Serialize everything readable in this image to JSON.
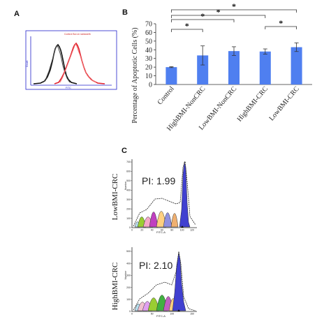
{
  "panels": {
    "a": {
      "letter": "A",
      "title": "Control Ba Lin ssbsweth",
      "ylabel": "Count",
      "xlabel": "FITC",
      "colors": {
        "control": "#111111",
        "treated": "#e0202e",
        "frame": "#2222cc"
      }
    },
    "b": {
      "letter": "B",
      "chart_data": {
        "type": "bar",
        "categories": [
          "Control",
          "HighBMI-NonCRC",
          "LowBMI-NonCRC",
          "HighBMI-CRC",
          "LowBMI-CRC"
        ],
        "values": [
          20,
          33.5,
          38.5,
          38,
          43
        ],
        "errors": [
          0.5,
          11,
          5,
          3,
          5
        ],
        "ylabel": "Percentage of Apoptotic Cells (%)",
        "ylim": [
          0,
          70
        ],
        "yticks": [
          0,
          10,
          20,
          30,
          40,
          50,
          60,
          70
        ],
        "bar_color": "#4f7ff0",
        "grid": false,
        "significance": [
          {
            "from": 0,
            "to": 1,
            "label": "*"
          },
          {
            "from": 0,
            "to": 2,
            "label": "*"
          },
          {
            "from": 0,
            "to": 3,
            "label": "*"
          },
          {
            "from": 0,
            "to": 4,
            "label": "*"
          },
          {
            "from": 3,
            "to": 4,
            "label": "*"
          }
        ]
      }
    },
    "c": {
      "letter": "C",
      "plots": [
        {
          "row_label": "LowBMI-CRC",
          "pi_text": "PI: 1.99",
          "xlabel": "FITC-A",
          "ylabel": "Number",
          "yticks": [
            "0",
            "100",
            "200",
            "300",
            "400",
            "500",
            "600",
            "700"
          ],
          "xticks": [
            "0",
            "20",
            "40",
            "60",
            "80",
            "100",
            "120"
          ],
          "peak_colors": [
            "#b8e0f0",
            "#9acd32",
            "#f5a8c8",
            "#c040c0",
            "#ffd080",
            "#9090e0",
            "#f0b070",
            "#4040d0"
          ]
        },
        {
          "row_label": "HighBMI-CRC",
          "pi_text": "PI: 2.10",
          "xlabel": "FITC-A",
          "ylabel": "Number",
          "yticks": [
            "0",
            "100",
            "200",
            "300",
            "400",
            "500"
          ],
          "xticks": [
            "0",
            "50",
            "100",
            "150"
          ],
          "peak_colors": [
            "#b8e0f0",
            "#f0c0d0",
            "#e0a0f0",
            "#9acd32",
            "#40b040",
            "#c060c0",
            "#ffd080",
            "#4040d0"
          ]
        }
      ]
    }
  }
}
